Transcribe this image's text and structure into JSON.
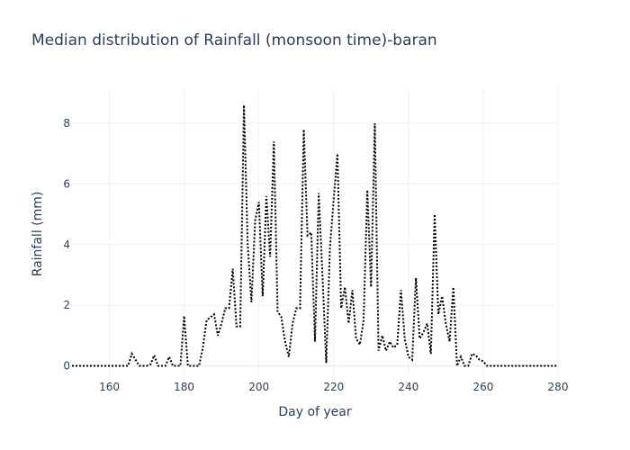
{
  "chart_data": {
    "type": "line",
    "title": "Median distribution of Rainfall (monsoon time)-baran",
    "xlabel": "Day of year",
    "ylabel": "Rainfall (mm)",
    "xlim": [
      150,
      280
    ],
    "ylim": [
      -0.4,
      9.1
    ],
    "xticks": [
      160,
      180,
      200,
      220,
      240,
      260,
      280
    ],
    "yticks": [
      0,
      2,
      4,
      6,
      8
    ],
    "grid": true,
    "line_style": "dotted",
    "line_color": "#000000",
    "series": [
      {
        "x": [
          150,
          151,
          152,
          153,
          154,
          155,
          156,
          157,
          158,
          159,
          160,
          161,
          162,
          163,
          164,
          165,
          166,
          167,
          168,
          169,
          170,
          171,
          172,
          173,
          174,
          175,
          176,
          177,
          178,
          179,
          180,
          181,
          182,
          183,
          184,
          185,
          186,
          187,
          188,
          189,
          190,
          191,
          192,
          193,
          194,
          195,
          196,
          197,
          198,
          199,
          200,
          201,
          202,
          203,
          204,
          205,
          206,
          207,
          208,
          209,
          210,
          211,
          212,
          213,
          214,
          215,
          216,
          217,
          218,
          219,
          220,
          221,
          222,
          223,
          224,
          225,
          226,
          227,
          228,
          229,
          230,
          231,
          232,
          233,
          234,
          235,
          236,
          237,
          238,
          239,
          240,
          241,
          242,
          243,
          244,
          245,
          246,
          247,
          248,
          249,
          250,
          251,
          252,
          253,
          254,
          255,
          256,
          257,
          258,
          259,
          260,
          261,
          262,
          263,
          264,
          265,
          266,
          267,
          268,
          269,
          270,
          271,
          272,
          273,
          274,
          275,
          276,
          277,
          278,
          279,
          280
        ],
        "y": [
          0,
          0,
          0,
          0,
          0,
          0,
          0,
          0,
          0,
          0,
          0,
          0,
          0,
          0,
          0,
          0,
          0.4,
          0.2,
          0,
          0,
          0,
          0.05,
          0.35,
          0,
          0,
          0,
          0.3,
          0,
          0,
          0,
          1.65,
          0,
          0,
          0,
          0,
          0.6,
          1.5,
          1.6,
          1.7,
          1.0,
          1.4,
          1.9,
          1.9,
          3.2,
          1.3,
          1.3,
          8.6,
          4.0,
          2.1,
          4.8,
          5.4,
          2.3,
          5.6,
          3.6,
          7.4,
          1.8,
          1.6,
          0.8,
          0.3,
          1.4,
          1.9,
          1.9,
          7.8,
          4.3,
          4.4,
          0.8,
          5.7,
          3.0,
          0.1,
          3.9,
          5.5,
          7.0,
          1.9,
          2.6,
          1.4,
          2.5,
          0.9,
          0.7,
          1.5,
          5.8,
          2.6,
          8.0,
          0.5,
          1.0,
          0.5,
          0.8,
          0.6,
          0.7,
          2.5,
          0.9,
          0.3,
          0.2,
          2.9,
          0.9,
          1.1,
          1.4,
          0.4,
          5.0,
          1.7,
          2.3,
          1.4,
          0.8,
          2.6,
          0,
          0.3,
          0,
          0,
          0.4,
          0.35,
          0.2,
          0.15,
          0,
          0,
          0,
          0,
          0,
          0,
          0,
          0,
          0,
          0,
          0,
          0,
          0,
          0,
          0,
          0,
          0,
          0,
          0,
          0
        ]
      }
    ]
  }
}
